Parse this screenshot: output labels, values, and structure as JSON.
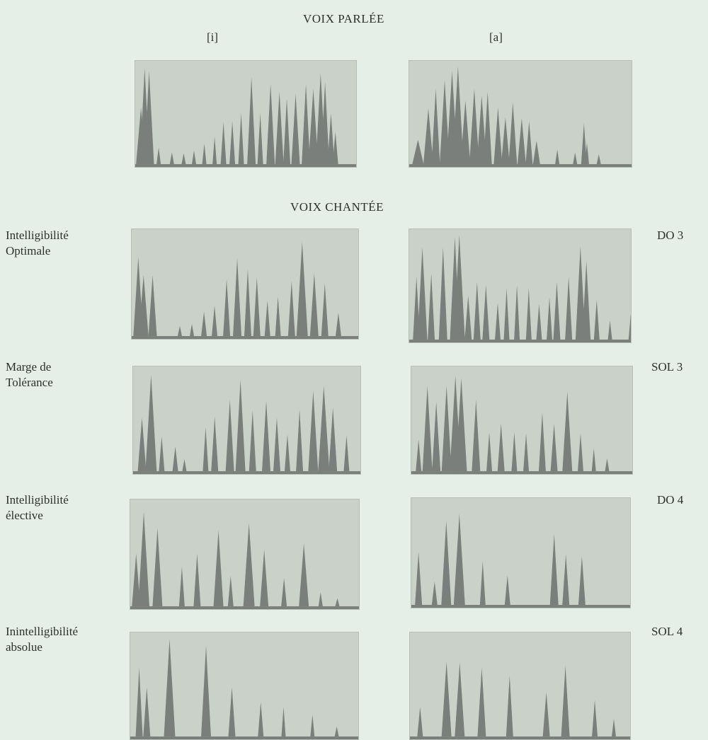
{
  "page": {
    "title_spoken": "VOIX PARLÉE",
    "title_sung": "VOIX CHANTÉE",
    "vowel_left": "[i]",
    "vowel_right": "[a]"
  },
  "rows": [
    {
      "label_line1": "",
      "label_line2": "",
      "note": ""
    },
    {
      "label_line1": "Intelligibilité",
      "label_line2": "Optimale",
      "note": "DO 3"
    },
    {
      "label_line1": "Marge de",
      "label_line2": "Tolérance",
      "note": "SOL 3"
    },
    {
      "label_line1": "Intelligibilité",
      "label_line2": "élective",
      "note": "DO 4"
    },
    {
      "label_line1": "Inintelligibilité",
      "label_line2": "absolue",
      "note": "SOL 4"
    }
  ],
  "colors": {
    "background": "#e6efe7",
    "panel": "#c9d1c9",
    "spike": "#7b7f7b"
  }
}
